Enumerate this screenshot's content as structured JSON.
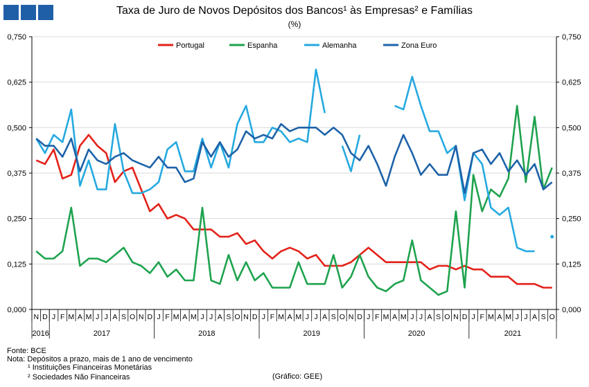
{
  "title": "Taxa de Juro de Novos Depósitos dos Bancos¹ às Empresas² e Famílias",
  "subtitle": "(%)",
  "footer": {
    "source": "Fonte: BCE",
    "note": "Nota: Depósitos a prazo, mais de 1 ano de vencimento",
    "note1": "¹ Instituições Financeiras Monetárias",
    "note2": "² Sociedades Não Financeiras",
    "credit": "(Gráfico: GEE)"
  },
  "colors": {
    "logo": "#1f5fa8",
    "axis": "#000000",
    "grid": "#d9d9d9"
  },
  "chart_data": {
    "type": "line",
    "ylim": [
      0,
      0.75
    ],
    "yticks": [
      "0,000",
      "0,125",
      "0,250",
      "0,375",
      "0,500",
      "0,625",
      "0,750"
    ],
    "y2ticks": [
      "0,000",
      "0,125",
      "0,250",
      "0,375",
      "0,500",
      "0,625",
      "0,750"
    ],
    "months": [
      "N",
      "D",
      "J",
      "F",
      "M",
      "A",
      "M",
      "J",
      "J",
      "A",
      "S",
      "O",
      "N",
      "D",
      "J",
      "F",
      "M",
      "A",
      "M",
      "J",
      "J",
      "A",
      "S",
      "O",
      "N",
      "D",
      "J",
      "F",
      "M",
      "A",
      "M",
      "J",
      "J",
      "A",
      "S",
      "O",
      "N",
      "D",
      "J",
      "F",
      "M",
      "A",
      "M",
      "J",
      "J",
      "A",
      "S",
      "O",
      "N",
      "D",
      "J",
      "F",
      "M",
      "A",
      "M",
      "J",
      "J",
      "A",
      "S",
      "O"
    ],
    "years": [
      {
        "label": "2016",
        "start": 0,
        "end": 2
      },
      {
        "label": "2017",
        "start": 2,
        "end": 14
      },
      {
        "label": "2018",
        "start": 14,
        "end": 26
      },
      {
        "label": "2019",
        "start": 26,
        "end": 38
      },
      {
        "label": "2020",
        "start": 38,
        "end": 50
      },
      {
        "label": "2021",
        "start": 50,
        "end": 60
      }
    ],
    "legend": [
      "Portugal",
      "Espanha",
      "Alemanha",
      "Zona Euro"
    ],
    "series": [
      {
        "name": "Portugal",
        "color": "#e32119",
        "values": [
          0.41,
          0.4,
          0.44,
          0.36,
          0.37,
          0.45,
          0.48,
          0.45,
          0.43,
          0.35,
          0.38,
          0.39,
          0.33,
          0.27,
          0.29,
          0.25,
          0.26,
          0.25,
          0.22,
          0.22,
          0.22,
          0.2,
          0.2,
          0.21,
          0.18,
          0.19,
          0.16,
          0.14,
          0.16,
          0.17,
          0.16,
          0.14,
          0.15,
          0.12,
          0.12,
          0.12,
          0.13,
          0.15,
          0.17,
          0.15,
          0.13,
          0.13,
          0.13,
          0.13,
          0.13,
          0.11,
          0.12,
          0.12,
          0.11,
          0.12,
          0.11,
          0.11,
          0.09,
          0.09,
          0.09,
          0.07,
          0.07,
          0.07,
          0.06,
          0.06
        ]
      },
      {
        "name": "Espanha",
        "color": "#1ea24e",
        "values": [
          0.16,
          0.14,
          0.14,
          0.16,
          0.28,
          0.12,
          0.14,
          0.14,
          0.13,
          0.15,
          0.17,
          0.13,
          0.12,
          0.1,
          0.13,
          0.09,
          0.11,
          0.08,
          0.08,
          0.28,
          0.08,
          0.07,
          0.15,
          0.08,
          0.13,
          0.08,
          0.1,
          0.06,
          0.06,
          0.06,
          0.13,
          0.07,
          0.07,
          0.07,
          0.15,
          0.06,
          0.09,
          0.15,
          0.09,
          0.06,
          0.05,
          0.07,
          0.08,
          0.19,
          0.08,
          0.06,
          0.04,
          0.05,
          0.27,
          0.06,
          0.37,
          0.27,
          0.33,
          0.31,
          0.36,
          0.56,
          0.35,
          0.53,
          0.33,
          0.39
        ]
      },
      {
        "name": "Alemanha",
        "color": "#25a9e0",
        "values": [
          0.47,
          0.43,
          0.48,
          0.46,
          0.55,
          0.34,
          0.41,
          0.33,
          0.33,
          0.51,
          0.38,
          0.32,
          0.32,
          0.33,
          0.35,
          0.44,
          0.46,
          0.38,
          0.38,
          0.47,
          0.39,
          0.46,
          0.39,
          0.51,
          0.56,
          0.46,
          0.46,
          0.5,
          0.49,
          0.46,
          0.47,
          0.46,
          0.66,
          0.54,
          null,
          0.45,
          0.38,
          0.48,
          null,
          null,
          null,
          0.56,
          0.55,
          0.64,
          0.56,
          0.49,
          0.49,
          0.43,
          0.45,
          0.3,
          0.43,
          0.4,
          0.28,
          0.26,
          0.28,
          0.17,
          0.16,
          0.16,
          null,
          0.2
        ]
      },
      {
        "name": "Zona Euro",
        "color": "#1d62a8",
        "values": [
          0.47,
          0.45,
          0.45,
          0.42,
          0.47,
          0.38,
          0.44,
          0.41,
          0.4,
          0.42,
          0.43,
          0.41,
          0.4,
          0.39,
          0.42,
          0.39,
          0.39,
          0.35,
          0.36,
          0.46,
          0.42,
          0.46,
          0.42,
          0.44,
          0.49,
          0.47,
          0.48,
          0.47,
          0.51,
          0.49,
          0.5,
          0.5,
          0.5,
          0.48,
          0.5,
          0.48,
          0.43,
          0.41,
          0.45,
          0.4,
          0.34,
          0.42,
          0.48,
          0.43,
          0.37,
          0.4,
          0.37,
          0.37,
          0.45,
          0.32,
          0.43,
          0.44,
          0.4,
          0.43,
          0.38,
          0.41,
          0.37,
          0.4,
          0.33,
          0.35
        ]
      }
    ]
  }
}
